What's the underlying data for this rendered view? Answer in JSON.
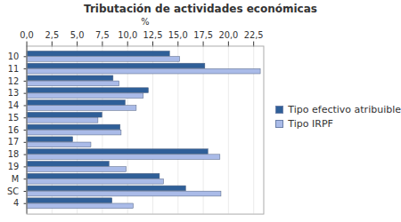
{
  "chart_data": {
    "type": "bar",
    "title": "Tributación de actividades económicas",
    "orientation": "horizontal",
    "x_label": "%",
    "categories": [
      "10",
      "11",
      "12",
      "13",
      "14",
      "15",
      "16",
      "17",
      "18",
      "19",
      "M",
      "SC",
      "4"
    ],
    "series": [
      {
        "name": "Tipo efectivo atribuible",
        "color": "#2f5f98",
        "values": [
          14.2,
          17.7,
          8.6,
          12.1,
          9.8,
          7.5,
          9.3,
          4.6,
          18.0,
          8.2,
          13.2,
          15.8,
          8.5
        ]
      },
      {
        "name": "Tipo IRPF",
        "color": "#aabbe8",
        "values": [
          15.2,
          23.2,
          9.2,
          11.6,
          10.9,
          7.1,
          9.4,
          6.4,
          19.2,
          9.9,
          13.6,
          19.3,
          10.6
        ]
      }
    ],
    "xlim": [
      0,
      23.5
    ],
    "xticks": [
      {
        "value": 0,
        "label": "0,0"
      },
      {
        "value": 2.5,
        "label": "2,5"
      },
      {
        "value": 5,
        "label": "5,0"
      },
      {
        "value": 7.5,
        "label": "7,5"
      },
      {
        "value": 10,
        "label": "10,0"
      },
      {
        "value": 12.5,
        "label": "12,5"
      },
      {
        "value": 15,
        "label": "15,0"
      },
      {
        "value": 17.5,
        "label": "17,5"
      },
      {
        "value": 20,
        "label": "20,0"
      },
      {
        "value": 22.5,
        "label": "22,5"
      }
    ],
    "grid": true,
    "legend": "right"
  }
}
